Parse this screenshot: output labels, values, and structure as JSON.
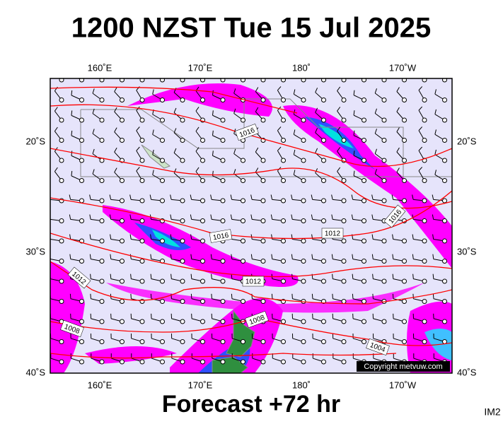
{
  "header": {
    "title": "1200 NZST Tue 15 Jul 2025"
  },
  "map": {
    "lon_labels": [
      "160˚E",
      "170˚E",
      "180˚",
      "170˚W"
    ],
    "lat_labels": [
      "20˚S",
      "30˚S",
      "40˚S"
    ],
    "isobar_labels": [
      "1016",
      "1016",
      "1016",
      "1012",
      "1012",
      "1012",
      "1008",
      "1008",
      "1004"
    ],
    "copyright": "Copyright metvuw.com"
  },
  "footer": {
    "forecast": "Forecast +72 hr",
    "code": "IM2"
  }
}
